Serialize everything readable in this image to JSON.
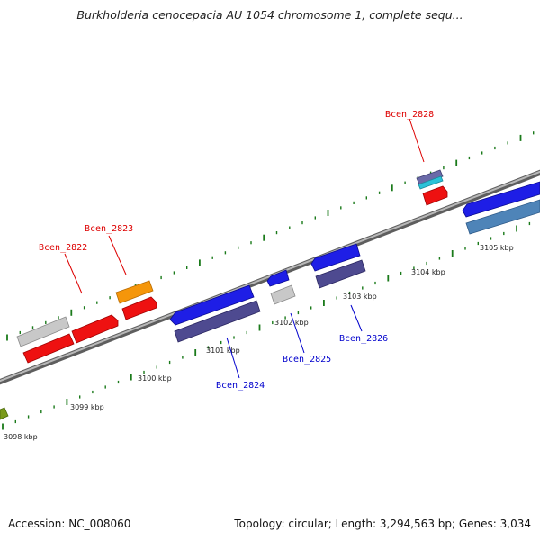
{
  "title": "Burkholderia cenocepacia AU 1054 chromosome 1, complete sequ...",
  "footer": {
    "accession": "Accession: NC_008060",
    "topology": "Topology: circular; Length: 3,294,563 bp; Genes: 3,034"
  },
  "scale_labels": [
    "3098 kbp",
    "3099 kbp",
    "3100 kbp",
    "3101 kbp",
    "3102 kbp",
    "3103 kbp",
    "3104 kbp",
    "3105 kbp"
  ],
  "gene_labels": {
    "forward": [
      "Bcen_2822",
      "Bcen_2823",
      "Bcen_2828"
    ],
    "reverse": [
      "Bcen_2824",
      "Bcen_2825",
      "Bcen_2826"
    ]
  },
  "colors": {
    "forward_label": "#dd0000",
    "reverse_label": "#0000cc",
    "backbone": "#808080",
    "tick": "#1a7a1a",
    "red": "#ee1111",
    "gray": "#c8c8c8",
    "orange": "#f5960a",
    "blue": "#1e1ee6",
    "slate": "#4e4a90",
    "steel": "#4e84b8",
    "olive": "#7a9a1a",
    "cyan": "#29c2d8"
  }
}
